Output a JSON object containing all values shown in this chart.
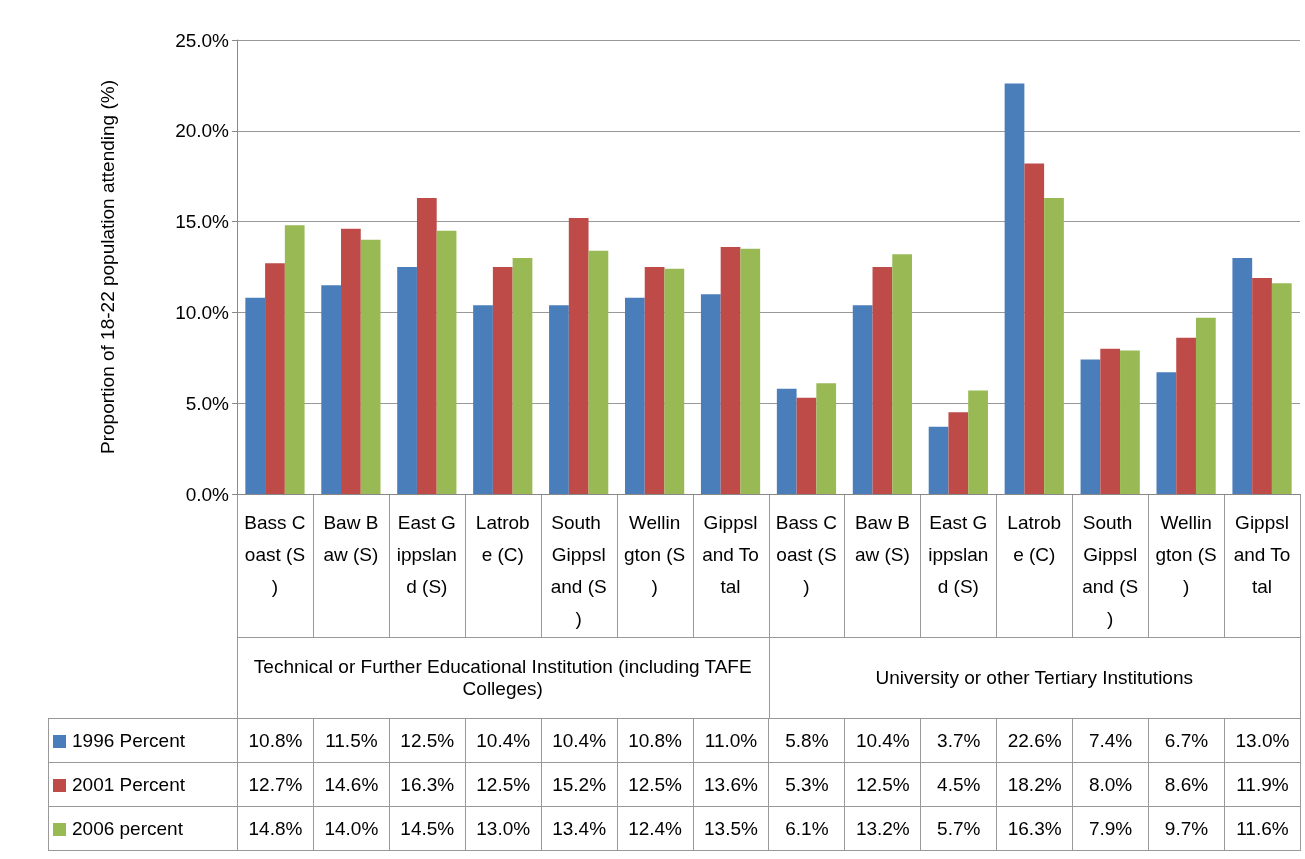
{
  "chart_data": {
    "type": "bar",
    "ylabel": "Proportion of 18-22 population attending (%)",
    "categories": [
      "Bass Coast (S)",
      "Baw Baw (S)",
      "East Gippsland (S)",
      "Latrobe (C)",
      "South Gippsland (S)",
      "Wellington (S)",
      "Gippsland Total",
      "Bass Coast (S)",
      "Baw Baw (S)",
      "East Gippsland (S)",
      "Latrobe (C)",
      "South Gippsland (S)",
      "Wellington (S)",
      "Gippsland Total"
    ],
    "annotations": [
      "Technical or Further Educational Institution (including TAFE Colleges)",
      "University or other Tertiary Institutions"
    ],
    "series": [
      {
        "name": "1996 Percent",
        "color": "#4a7ebb",
        "values": [
          10.8,
          11.5,
          12.5,
          10.4,
          10.4,
          10.8,
          11.0,
          5.8,
          10.4,
          3.7,
          22.6,
          7.4,
          6.7,
          13.0
        ],
        "value_labels": [
          "10.8%",
          "11.5%",
          "12.5%",
          "10.4%",
          "10.4%",
          "10.8%",
          "11.0%",
          "5.8%",
          "10.4%",
          "3.7%",
          "22.6%",
          "7.4%",
          "6.7%",
          "13.0%"
        ]
      },
      {
        "name": "2001 Percent",
        "color": "#be4b48",
        "values": [
          12.7,
          14.6,
          16.3,
          12.5,
          15.2,
          12.5,
          13.6,
          5.3,
          12.5,
          4.5,
          18.2,
          8.0,
          8.6,
          11.9
        ],
        "value_labels": [
          "12.7%",
          "14.6%",
          "16.3%",
          "12.5%",
          "15.2%",
          "12.5%",
          "13.6%",
          "5.3%",
          "12.5%",
          "4.5%",
          "18.2%",
          "8.0%",
          "8.6%",
          "11.9%"
        ]
      },
      {
        "name": "2006 percent",
        "color": "#98b954",
        "values": [
          14.8,
          14.0,
          14.5,
          13.0,
          13.4,
          12.4,
          13.5,
          6.1,
          13.2,
          5.7,
          16.3,
          7.9,
          9.7,
          11.6
        ],
        "value_labels": [
          "14.8%",
          "14.0%",
          "14.5%",
          "13.0%",
          "13.4%",
          "12.4%",
          "13.5%",
          "6.1%",
          "13.2%",
          "5.7%",
          "16.3%",
          "7.9%",
          "9.7%",
          "11.6%"
        ]
      }
    ],
    "ylim": [
      0,
      25
    ],
    "yticks": [
      {
        "value": 0,
        "label": "0.0%"
      },
      {
        "value": 5,
        "label": "5.0%"
      },
      {
        "value": 10,
        "label": "10.0%"
      },
      {
        "value": 15,
        "label": "15.0%"
      },
      {
        "value": 20,
        "label": "20.0%"
      },
      {
        "value": 25,
        "label": "25.0%"
      }
    ],
    "grid": "y",
    "legend": "bottom"
  }
}
